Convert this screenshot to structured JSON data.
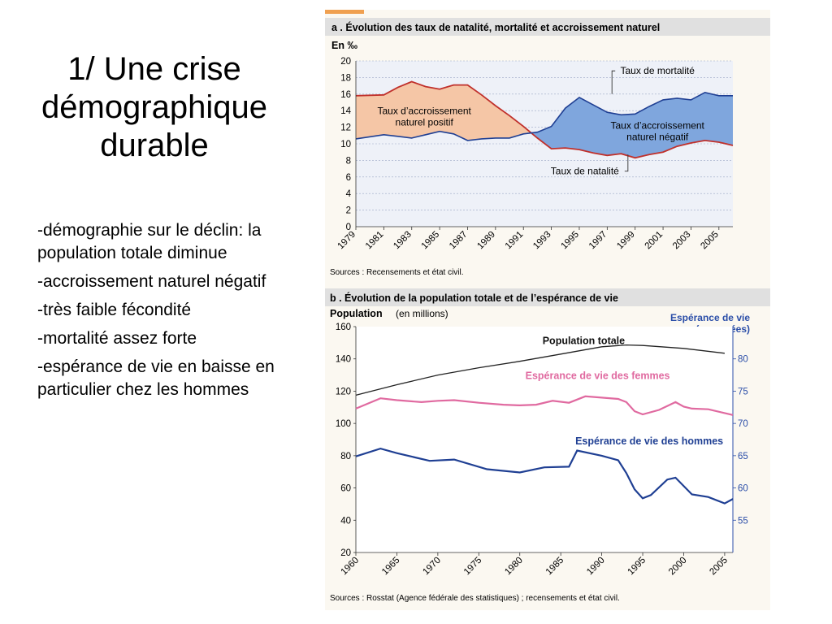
{
  "slide": {
    "title_lines": [
      "1/ Une crise",
      "démographique",
      "durable"
    ],
    "bullets": [
      "-démographie sur le déclin: la population totale diminue",
      "-accroissement naturel négatif",
      "-très faible fécondité",
      "-mortalité assez forte",
      "-espérance de vie en baisse en particulier chez les hommes"
    ]
  },
  "colors": {
    "red_line": "#c0302b",
    "natural_positive_fill": "#f5c6a6",
    "natural_negative_fill": "#7fa6dd",
    "blue_line": "#1f3f93",
    "pink_line": "#e06aa0",
    "black_line": "#222222",
    "right_axis": "#2b4ea8",
    "header_fill": "#e0e0e0",
    "plot_bg_a": "#eef1f8",
    "plot_bg_b": "#ffffff",
    "grid": "#9aa7c4"
  },
  "chart_data": [
    {
      "type": "area",
      "title": "a . Évolution des taux de natalité, mortalité et accroissement naturel",
      "unit_label": "En ‰",
      "ylim": [
        0,
        20
      ],
      "yticks": [
        "0",
        "2",
        "4",
        "6",
        "8",
        "10",
        "12",
        "14",
        "16",
        "18",
        "20"
      ],
      "xlim": [
        1979,
        2006
      ],
      "xticks": [
        "1979",
        "1981",
        "1983",
        "1985",
        "1987",
        "1989",
        "1991",
        "1993",
        "1995",
        "1997",
        "1999",
        "2001",
        "2003",
        "2005"
      ],
      "grid": true,
      "series": [
        {
          "name": "Taux de natalité",
          "x": [
            1979,
            1981,
            1982,
            1983,
            1984,
            1985,
            1986,
            1987,
            1988,
            1989,
            1990,
            1991,
            1992,
            1993,
            1994,
            1995,
            1996,
            1997,
            1998,
            1999,
            2000,
            2001,
            2002,
            2003,
            2004,
            2005,
            2006
          ],
          "values": [
            15.8,
            15.9,
            16.8,
            17.5,
            16.9,
            16.6,
            17.1,
            17.1,
            15.9,
            14.6,
            13.4,
            12.1,
            10.7,
            9.4,
            9.5,
            9.3,
            8.9,
            8.6,
            8.8,
            8.3,
            8.7,
            9.0,
            9.7,
            10.1,
            10.4,
            10.2,
            9.8
          ],
          "color": "#c0302b"
        },
        {
          "name": "Taux de mortalité",
          "x": [
            1979,
            1981,
            1982,
            1983,
            1984,
            1985,
            1986,
            1987,
            1988,
            1989,
            1990,
            1991,
            1992,
            1993,
            1994,
            1995,
            1996,
            1997,
            1998,
            1999,
            2000,
            2001,
            2002,
            2003,
            2004,
            2005,
            2006
          ],
          "values": [
            10.6,
            11.1,
            10.9,
            10.7,
            11.1,
            11.5,
            11.2,
            10.4,
            10.6,
            10.7,
            10.7,
            11.2,
            11.4,
            12.1,
            14.3,
            15.6,
            14.7,
            13.8,
            13.5,
            13.6,
            14.5,
            15.3,
            15.5,
            15.3,
            16.2,
            15.8,
            15.8
          ],
          "color": "#1f3f93"
        }
      ],
      "annotations": [
        {
          "text_lines": [
            "Taux de mortalité"
          ],
          "x": 2000.6,
          "y": 18.8
        },
        {
          "text_lines": [
            "Taux d’accroissement",
            "naturel positif"
          ],
          "x": 1983.9,
          "y": 13.6
        },
        {
          "text_lines": [
            "Taux d’accroissement",
            "naturel négatif"
          ],
          "x": 2000.6,
          "y": 11.8
        },
        {
          "text_lines": [
            "Taux de natalité"
          ],
          "x": 1995.4,
          "y": 6.7
        }
      ],
      "source": "Sources : Recensements et état civil."
    },
    {
      "type": "line",
      "title": "b . Évolution de la population totale et de l’espérance de vie",
      "ylabel": "Population",
      "ylabel_unit": "(en millions)",
      "ylim": [
        20,
        160
      ],
      "yticks": [
        "20",
        "40",
        "60",
        "80",
        "100",
        "120",
        "140",
        "160"
      ],
      "y2label_lines": [
        "Espérance de vie",
        "(en années)"
      ],
      "y2lim": [
        50,
        85
      ],
      "y2ticks": [
        "55",
        "60",
        "65",
        "70",
        "75",
        "80"
      ],
      "xlim": [
        1960,
        2006
      ],
      "xticks": [
        "1960",
        "1965",
        "1970",
        "1975",
        "1980",
        "1985",
        "1990",
        "1995",
        "2000",
        "2005"
      ],
      "grid": false,
      "series": [
        {
          "name": "Population totale",
          "axis": "left",
          "x": [
            1960,
            1965,
            1970,
            1975,
            1980,
            1985,
            1990,
            1993,
            1995,
            2000,
            2005
          ],
          "values": [
            117.5,
            124,
            130,
            134.5,
            138.5,
            143,
            147.5,
            148.6,
            148.3,
            146.5,
            143.5
          ],
          "color": "#222222"
        },
        {
          "name": "Espérance de vie des femmes",
          "axis": "right",
          "x": [
            1960,
            1963,
            1965,
            1968,
            1970,
            1972,
            1975,
            1978,
            1980,
            1982,
            1984,
            1986,
            1988,
            1990,
            1992,
            1993,
            1994,
            1995,
            1997,
            1999,
            2000,
            2001,
            2003,
            2005,
            2006
          ],
          "values": [
            72.3,
            73.9,
            73.6,
            73.3,
            73.5,
            73.6,
            73.2,
            72.9,
            72.8,
            72.9,
            73.5,
            73.2,
            74.2,
            74.0,
            73.8,
            73.3,
            71.9,
            71.4,
            72.1,
            73.3,
            72.6,
            72.3,
            72.2,
            71.6,
            71.3
          ],
          "color": "#e06aa0"
        },
        {
          "name": "Espérance de vie des hommes",
          "axis": "right",
          "x": [
            1960,
            1963,
            1965,
            1969,
            1972,
            1976,
            1980,
            1983,
            1986,
            1987,
            1990,
            1992,
            1993,
            1994,
            1995,
            1996,
            1998,
            1999,
            2001,
            2003,
            2005,
            2006
          ],
          "values": [
            64.9,
            66.1,
            65.4,
            64.2,
            64.4,
            62.9,
            62.4,
            63.2,
            63.3,
            65.8,
            65.0,
            64.3,
            62.3,
            59.8,
            58.4,
            58.9,
            61.3,
            61.6,
            59.0,
            58.6,
            57.6,
            58.3
          ],
          "color": "#1f3f93"
        }
      ],
      "source": "Sources : Rosstat (Agence fédérale des statistiques) ; recensements et état civil."
    }
  ]
}
